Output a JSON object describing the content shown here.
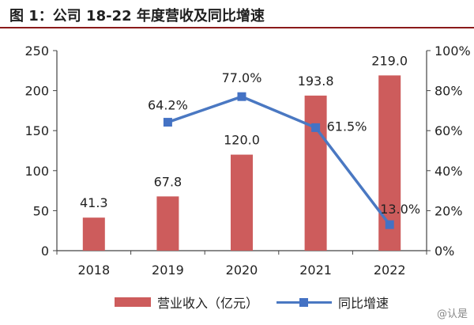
{
  "title": "图 1：公司 18-22 年度营收及同比增速",
  "watermark": "@认是",
  "colors": {
    "bar": "#cd5c5c",
    "line": "#4a78c2",
    "marker": "#4472c4",
    "title_rule": "#8b1a1a",
    "axis": "#444444"
  },
  "chart_data": {
    "type": "bar",
    "categories": [
      "2018",
      "2019",
      "2020",
      "2021",
      "2022"
    ],
    "series": [
      {
        "name": "营业收入（亿元）",
        "type": "bar",
        "axis": "left",
        "values": [
          41.3,
          67.8,
          120.0,
          193.8,
          219.0
        ],
        "labels": [
          "41.3",
          "67.8",
          "120.0",
          "193.8",
          "219.0"
        ]
      },
      {
        "name": "同比增速",
        "type": "line",
        "axis": "right",
        "values": [
          null,
          64.2,
          77.0,
          61.5,
          13.0
        ],
        "labels": [
          "",
          "64.2%",
          "77.0%",
          "61.5%",
          "13.0%"
        ]
      }
    ],
    "y_left": {
      "ylim": [
        0,
        250
      ],
      "ticks": [
        0,
        50,
        100,
        150,
        200,
        250
      ],
      "tick_labels": [
        "0",
        "50",
        "100",
        "150",
        "200",
        "250"
      ]
    },
    "y_right": {
      "ylim": [
        0,
        100
      ],
      "ticks": [
        0,
        20,
        40,
        60,
        80,
        100
      ],
      "tick_labels": [
        "0%",
        "20%",
        "40%",
        "60%",
        "80%",
        "100%"
      ]
    },
    "grid": false,
    "legend": "bottom-center"
  }
}
